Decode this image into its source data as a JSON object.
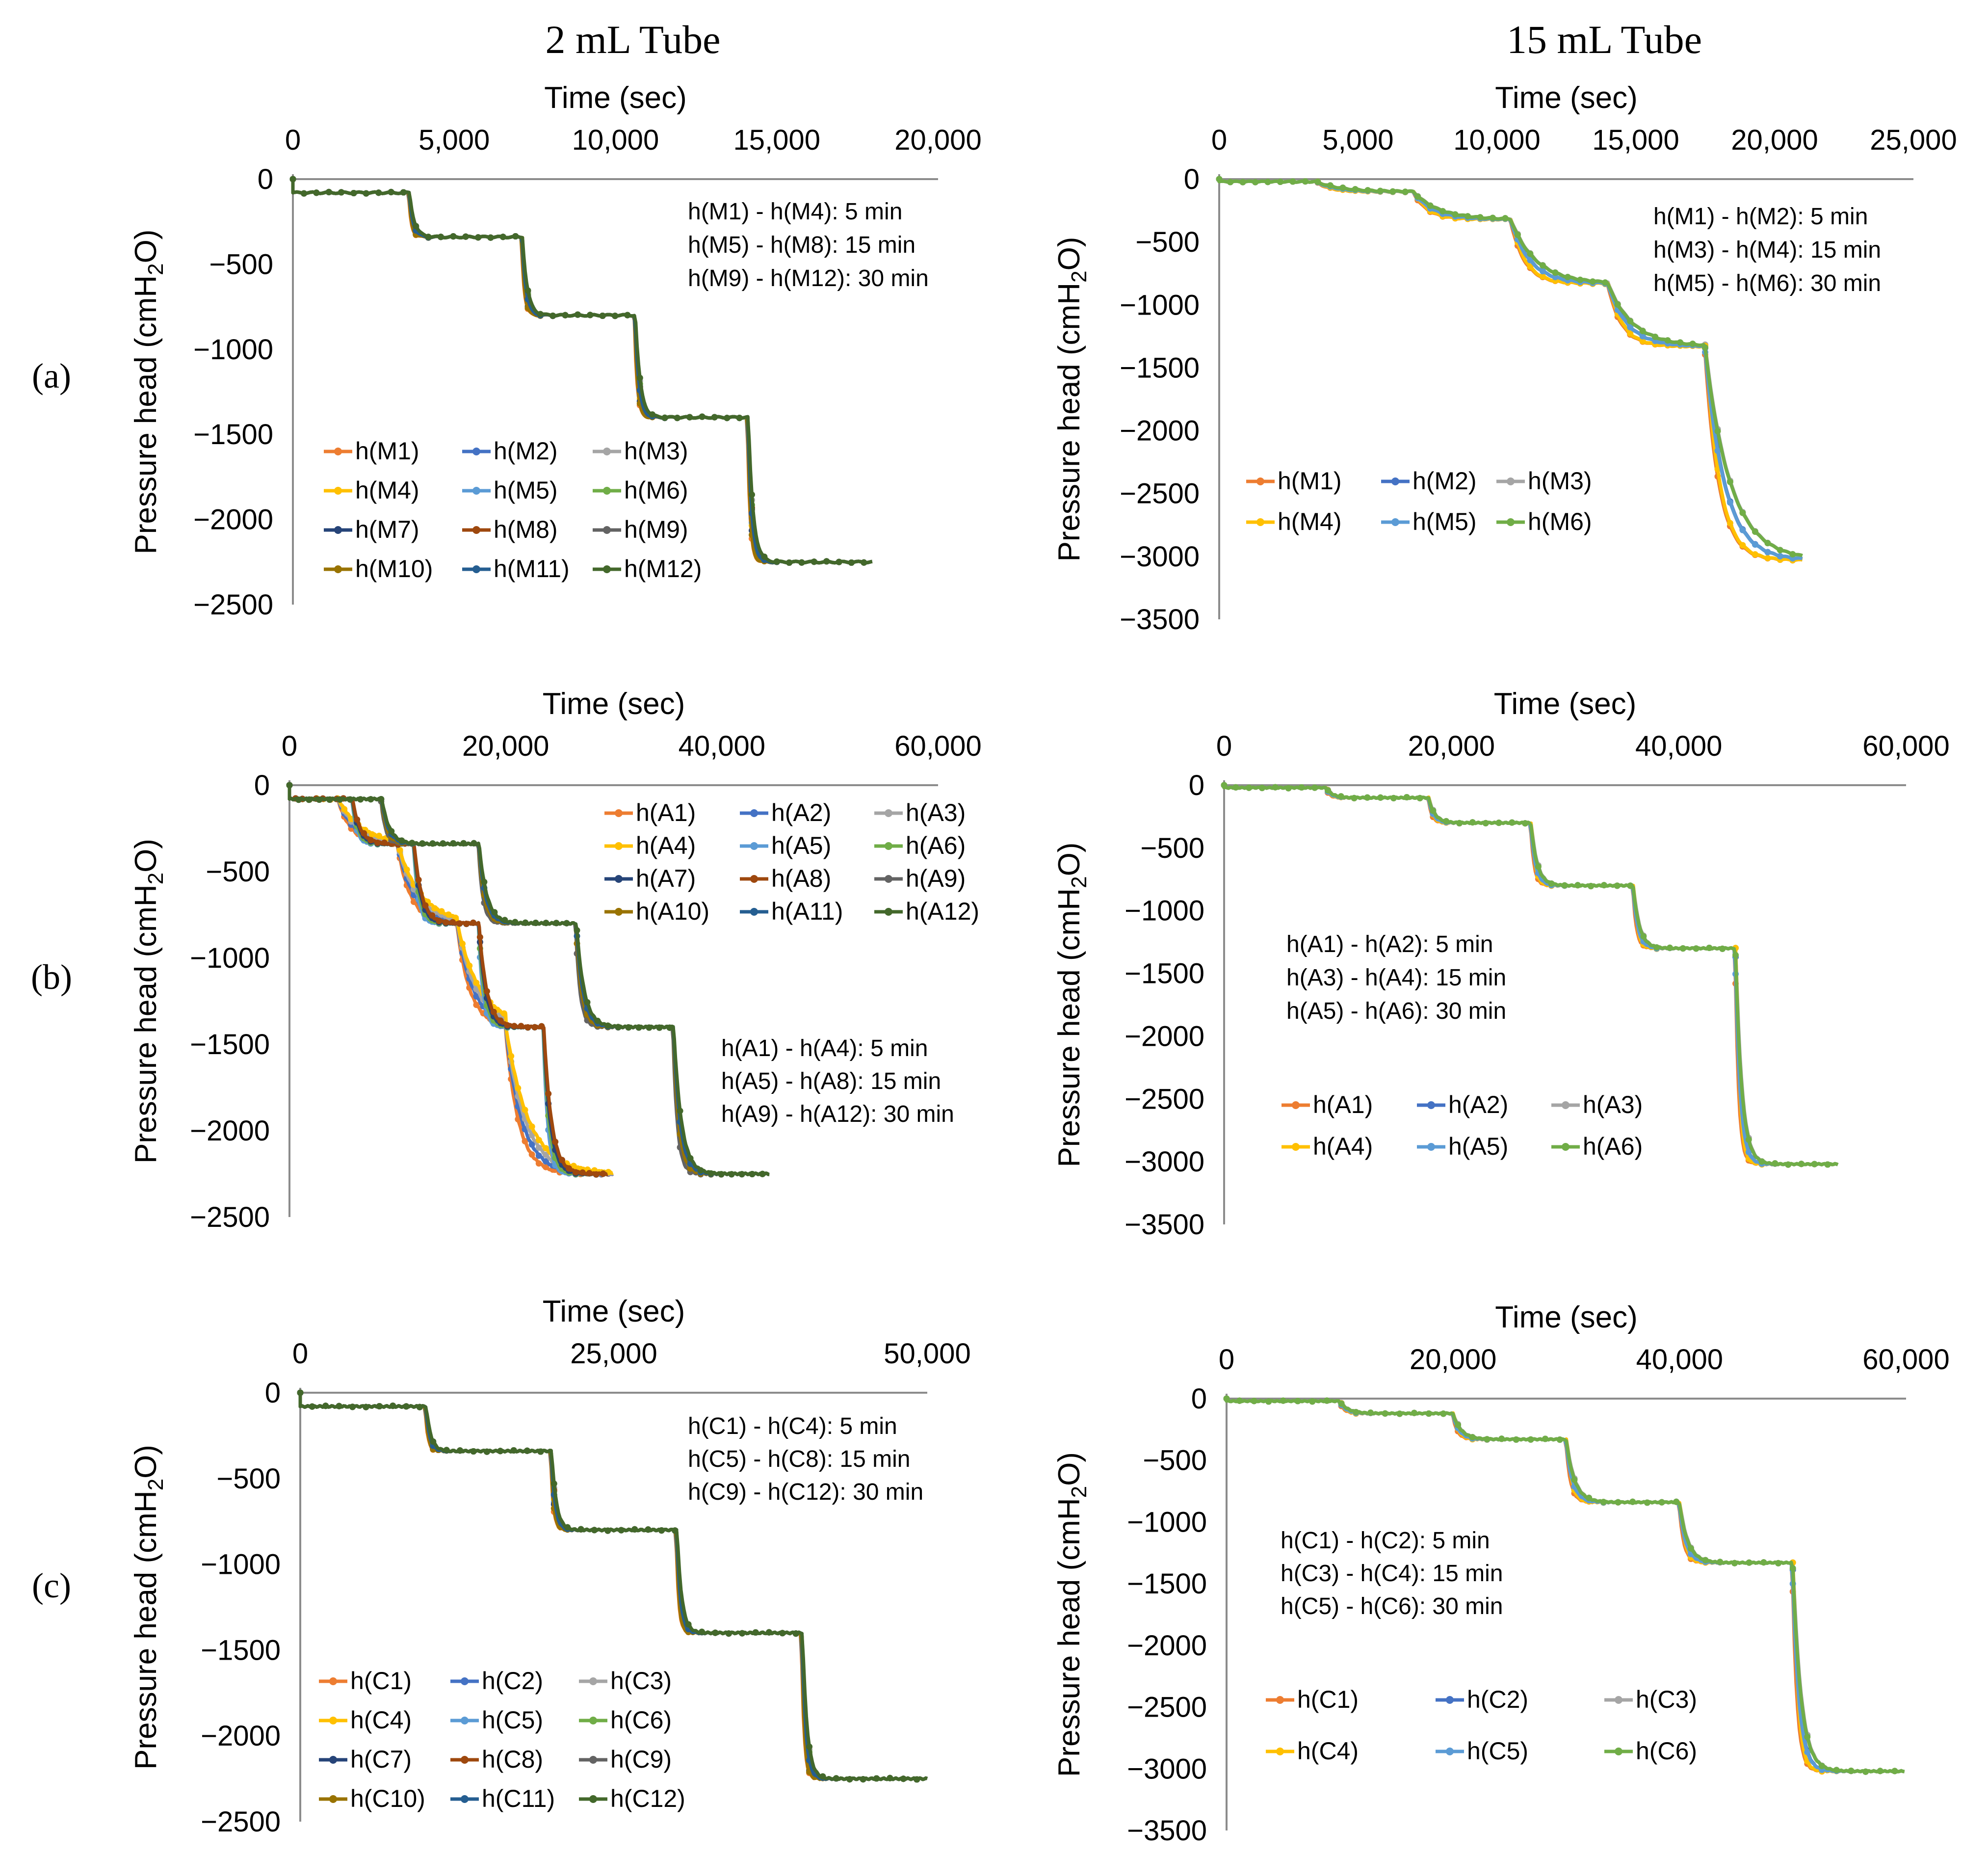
{
  "figure": {
    "column_titles": [
      "2 mL Tube",
      "15 mL Tube"
    ],
    "row_labels": [
      "(a)",
      "(b)",
      "(c)"
    ]
  },
  "colors": {
    "h1": "#ed7d31",
    "h2": "#4472c4",
    "h3": "#a5a5a5",
    "h4": "#ffc000",
    "h5": "#5b9bd5",
    "h6": "#70ad47",
    "h7": "#264478",
    "h8": "#9e480e",
    "h9": "#636363",
    "h10": "#997300",
    "h11": "#255e91",
    "h12": "#43682b"
  },
  "chart_data": [
    {
      "id": "a-left",
      "type": "line",
      "title": "",
      "xlabel": "Time (sec)",
      "ylabel": "Pressure head (cmH2O)",
      "xlim": [
        0,
        20000
      ],
      "ylim": [
        -2500,
        0
      ],
      "xticks": [
        0,
        5000,
        10000,
        15000,
        20000
      ],
      "xtick_labels": [
        "0",
        "5,000",
        "10,000",
        "15,000",
        "20,000"
      ],
      "yticks": [
        0,
        -500,
        -1000,
        -1500,
        -2000,
        -2500
      ],
      "ytick_labels": [
        "0",
        "−500",
        "−1000",
        "−1500",
        "−2000",
        "−2500"
      ],
      "annotation": [
        "h(M1) - h(M4): 5 min",
        "h(M5) - h(M8): 15 min",
        "h(M9) - h(M12): 30 min"
      ],
      "legend": [
        "h(M1)",
        "h(M2)",
        "h(M3)",
        "h(M4)",
        "h(M5)",
        "h(M6)",
        "h(M7)",
        "h(M8)",
        "h(M9)",
        "h(M10)",
        "h(M11)",
        "h(M12)"
      ],
      "levels": [
        -80,
        -340,
        -800,
        -1400,
        -2250
      ],
      "steps": [
        3600,
        7100,
        10600,
        14100
      ],
      "end": 18000,
      "tau": 80
    },
    {
      "id": "a-right",
      "type": "line",
      "title": "",
      "xlabel": "Time (sec)",
      "ylabel": "Pressure head (cmH2O)",
      "xlim": [
        0,
        25000
      ],
      "ylim": [
        -3500,
        0
      ],
      "xticks": [
        0,
        5000,
        10000,
        15000,
        20000,
        25000
      ],
      "xtick_labels": [
        "0",
        "5,000",
        "10,000",
        "15,000",
        "20,000",
        "25,000"
      ],
      "yticks": [
        0,
        -500,
        -1000,
        -1500,
        -2000,
        -2500,
        -3000,
        -3500
      ],
      "ytick_labels": [
        "0",
        "−500",
        "−1000",
        "−1500",
        "−2000",
        "−2500",
        "−3000",
        "−3500"
      ],
      "annotation": [
        "h(M1) - h(M2): 5 min",
        "h(M3) - h(M4): 15 min",
        "h(M5) - h(M6): 30 min"
      ],
      "legend": [
        "h(M1)",
        "h(M2)",
        "h(M3)",
        "h(M4)",
        "h(M5)",
        "h(M6)"
      ],
      "levels": [
        -20,
        -100,
        -320,
        -830,
        -1330,
        -3030
      ],
      "steps": [
        3500,
        7000,
        10500,
        14000,
        17500
      ],
      "end": 21000,
      "tau": 500
    },
    {
      "id": "b-left",
      "type": "line",
      "title": "",
      "xlabel": "Time (sec)",
      "ylabel": "Pressure head (cmH2O)",
      "xlim": [
        0,
        60000
      ],
      "ylim": [
        -2500,
        0
      ],
      "xticks": [
        0,
        20000,
        40000,
        60000
      ],
      "xtick_labels": [
        "0",
        "20,000",
        "40,000",
        "60,000"
      ],
      "yticks": [
        0,
        -500,
        -1000,
        -1500,
        -2000,
        -2500
      ],
      "ytick_labels": [
        "0",
        "−500",
        "−1000",
        "−1500",
        "−2000",
        "−2500"
      ],
      "annotation": [
        "h(A1) - h(A4): 5 min",
        "h(A5) - h(A8): 15 min",
        "h(A9) - h(A12): 30 min"
      ],
      "legend": [
        "h(A1)",
        "h(A2)",
        "h(A3)",
        "h(A4)",
        "h(A5)",
        "h(A6)",
        "h(A7)",
        "h(A8)",
        "h(A9)",
        "h(A10)",
        "h(A11)",
        "h(A12)"
      ],
      "groups": [
        {
          "levels": [
            -80,
            -340,
            -800,
            -1400,
            -2250
          ],
          "steps": [
            4500,
            10000,
            15500,
            20000
          ],
          "end": 30000,
          "tau": 1200
        },
        {
          "levels": [
            -80,
            -340,
            -800,
            -1400,
            -2250
          ],
          "steps": [
            5800,
            11500,
            17500,
            23500
          ],
          "end": 29500,
          "tau": 400
        },
        {
          "levels": [
            -80,
            -340,
            -800,
            -1400,
            -2250
          ],
          "steps": [
            8500,
            17500,
            26500,
            35500
          ],
          "end": 44500,
          "tau": 400
        }
      ]
    },
    {
      "id": "b-right",
      "type": "line",
      "title": "",
      "xlabel": "Time (sec)",
      "ylabel": "Pressure head (cmH2O)",
      "xlim": [
        0,
        60000
      ],
      "ylim": [
        -3500,
        0
      ],
      "xticks": [
        0,
        20000,
        40000,
        60000
      ],
      "xtick_labels": [
        "0",
        "20,000",
        "40,000",
        "60,000"
      ],
      "yticks": [
        0,
        -500,
        -1000,
        -1500,
        -2000,
        -2500,
        -3000,
        -3500
      ],
      "ytick_labels": [
        "0",
        "−500",
        "−1000",
        "−1500",
        "−2000",
        "−2500",
        "−3000",
        "−3500"
      ],
      "annotation": [
        "h(A1) - h(A2): 5 min",
        "h(A3) - h(A4): 15 min",
        "h(A5) - h(A6): 30 min"
      ],
      "legend": [
        "h(A1)",
        "h(A2)",
        "h(A3)",
        "h(A4)",
        "h(A5)",
        "h(A6)"
      ],
      "levels": [
        -20,
        -100,
        -300,
        -800,
        -1300,
        -3020
      ],
      "steps": [
        9000,
        18000,
        27000,
        36000,
        45000
      ],
      "end": 54000,
      "tau": 300
    },
    {
      "id": "c-left",
      "type": "line",
      "title": "",
      "xlabel": "Time (sec)",
      "ylabel": "Pressure head (cmH2O)",
      "xlim": [
        0,
        50000
      ],
      "ylim": [
        -2500,
        0
      ],
      "xticks": [
        0,
        25000,
        50000
      ],
      "xtick_labels": [
        "0",
        "25,000",
        "50,000"
      ],
      "yticks": [
        0,
        -500,
        -1000,
        -1500,
        -2000,
        -2500
      ],
      "ytick_labels": [
        "0",
        "−500",
        "−1000",
        "−1500",
        "−2000",
        "−2500"
      ],
      "annotation": [
        "h(C1) - h(C4): 5 min",
        "h(C5) - h(C8): 15 min",
        "h(C9) - h(C12): 30 min"
      ],
      "legend": [
        "h(C1)",
        "h(C2)",
        "h(C3)",
        "h(C4)",
        "h(C5)",
        "h(C6)",
        "h(C7)",
        "h(C8)",
        "h(C9)",
        "h(C10)",
        "h(C11)",
        "h(C12)"
      ],
      "levels": [
        -80,
        -340,
        -800,
        -1400,
        -2250
      ],
      "steps": [
        10000,
        20000,
        30000,
        40000
      ],
      "end": 50000,
      "tau": 200
    },
    {
      "id": "c-right",
      "type": "line",
      "title": "",
      "xlabel": "Time (sec)",
      "ylabel": "Pressure head (cmH2O)",
      "xlim": [
        0,
        60000
      ],
      "ylim": [
        -3500,
        0
      ],
      "xticks": [
        0,
        20000,
        40000,
        60000
      ],
      "xtick_labels": [
        "0",
        "20,000",
        "40,000",
        "60,000"
      ],
      "yticks": [
        0,
        -500,
        -1000,
        -1500,
        -2000,
        -2500,
        -3000,
        -3500
      ],
      "ytick_labels": [
        "0",
        "−500",
        "−1000",
        "−1500",
        "−2000",
        "−2500",
        "−3000",
        "−3500"
      ],
      "annotation": [
        "h(C1) - h(C2): 5 min",
        "h(C3) - h(C4): 15 min",
        "h(C5) - h(C6): 30 min"
      ],
      "legend": [
        "h(C1)",
        "h(C2)",
        "h(C3)",
        "h(C4)",
        "h(C5)",
        "h(C6)"
      ],
      "levels": [
        -20,
        -120,
        -330,
        -840,
        -1330,
        -3020
      ],
      "steps": [
        10000,
        20000,
        30000,
        40000,
        50000
      ],
      "end": 60000,
      "tau": 400
    }
  ]
}
